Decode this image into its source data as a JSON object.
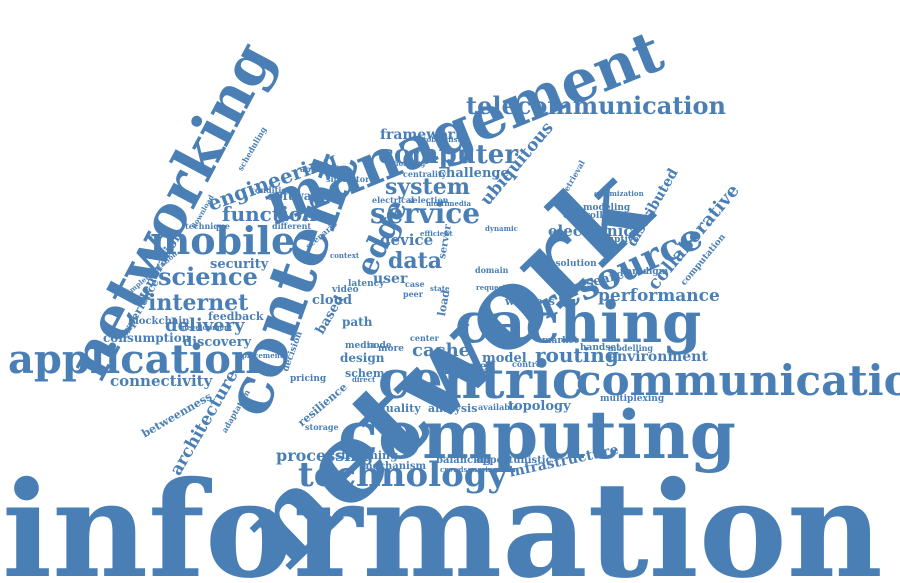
{
  "cloud": {
    "color": "#4a7fb5",
    "words": {
      "information": "information",
      "network": "network",
      "content": "content",
      "computing": "computing",
      "centric": "centric",
      "caching": "caching",
      "communication": "communication",
      "application": "application",
      "networking": "networking",
      "management": "management",
      "technology": "technology",
      "mobile": "mobile",
      "resource": "resource",
      "telecommunication": "telecommunication",
      "service": "service",
      "computer": "computer",
      "edge": "edge",
      "system": "system",
      "engineering": "engineering",
      "function": "function",
      "science": "science",
      "internet": "internet",
      "delivery": "delivery",
      "performance": "performance",
      "collaborative": "collaborative",
      "data": "data",
      "cache": "cache",
      "routing": "routing",
      "environment": "environment",
      "connectivity": "connectivity",
      "architecture": "architecture",
      "processing": "processing",
      "infrastructure": "infrastructure",
      "ubiquitous": "ubiquitous",
      "framework": "framework",
      "challenge": "challenge",
      "electronic": "electronic",
      "distributed": "distributed",
      "device": "device",
      "security": "security",
      "generation": "generation",
      "discovery": "discovery",
      "consumption": "consumption",
      "feedback": "feedback",
      "experience": "experience",
      "cloud": "cloud",
      "design": "design",
      "scheme": "scheme",
      "topology": "topology",
      "analysis": "analysis",
      "quality": "quality",
      "wireless": "wireless",
      "research": "research",
      "model": "model",
      "named": "named",
      "software": "software",
      "user": "user",
      "betweenness": "betweenness",
      "blockchain": "blockchain",
      "path": "path",
      "based": "based",
      "resilience": "resilience",
      "streaming": "streaming",
      "mechanism": "mechanism",
      "balancing": "balancing",
      "opportunistic": "opportunistic",
      "multiplexing": "multiplexing",
      "pricing": "pricing",
      "latency": "latency",
      "controller": "controller",
      "paradigm": "paradigm",
      "resolution": "resolution",
      "modeling": "modeling",
      "disruptive": "disruptive",
      "handset": "handset",
      "market": "market",
      "video": "video",
      "media": "media",
      "load": "load",
      "server": "server",
      "decision": "decision",
      "scenario": "scenario",
      "computation": "computation",
      "storage": "storage",
      "control": "control",
      "domain": "domain",
      "available": "available",
      "modelling": "modelling",
      "adaptation": "adaptation",
      "approach": "approach",
      "technique": "technique",
      "simulator": "simulator",
      "centrality": "centrality",
      "selection": "selection",
      "electrical": "electrical",
      "condition": "condition",
      "different": "different",
      "scheduling": "scheduling",
      "more": "more",
      "node": "node",
      "center": "center",
      "peer": "peer",
      "case": "case",
      "state": "state",
      "probabilistic": "probabilistic",
      "retrieval": "retrieval",
      "offloading": "offloading",
      "direct": "direct",
      "dynamic": "dynamic",
      "implementation": "implementation",
      "development": "development",
      "efficient": "efficient",
      "crowdsourcing": "crowdsourcing",
      "optimization": "optimization",
      "download": "download",
      "multimedia": "multimedia",
      "request": "request",
      "placement": "placement",
      "context": "context"
    }
  }
}
